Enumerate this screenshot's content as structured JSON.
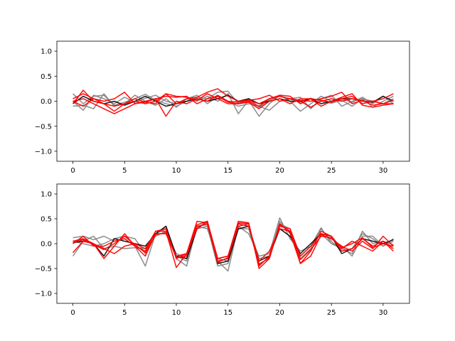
{
  "chart_data": [
    {
      "type": "line",
      "title": "",
      "xlabel": "",
      "ylabel": "",
      "xlim": [
        -1.55,
        32.55
      ],
      "ylim": [
        -1.2,
        1.2
      ],
      "xticks": [
        0,
        5,
        10,
        15,
        20,
        25,
        30
      ],
      "xtick_labels": [
        "0",
        "5",
        "10",
        "15",
        "20",
        "25",
        "30"
      ],
      "yticks": [
        -1.0,
        -0.5,
        0.0,
        0.5,
        1.0
      ],
      "ytick_labels": [
        "−1.0",
        "−0.5",
        "0.0",
        "0.5",
        "1.0"
      ],
      "grid": false,
      "x": [
        0,
        1,
        2,
        3,
        4,
        5,
        6,
        7,
        8,
        9,
        10,
        11,
        12,
        13,
        14,
        15,
        16,
        17,
        18,
        19,
        20,
        21,
        22,
        23,
        24,
        25,
        26,
        27,
        28,
        29,
        30,
        31
      ],
      "series": [
        {
          "color": "#808080",
          "values": [
            0.15,
            -0.05,
            0.1,
            0.12,
            -0.08,
            -0.02,
            0.05,
            0.14,
            0.02,
            -0.05,
            -0.1,
            0.0,
            0.08,
            0.05,
            0.18,
            0.2,
            -0.05,
            0.05,
            -0.12,
            0.02,
            0.1,
            0.04,
            -0.02,
            0.06,
            0.0,
            -0.04,
            0.02,
            -0.1,
            0.05,
            0.0,
            -0.05,
            0.05
          ]
        },
        {
          "color": "#808080",
          "values": [
            0.0,
            -0.18,
            0.12,
            0.05,
            -0.05,
            0.08,
            -0.02,
            0.06,
            0.12,
            0.0,
            -0.05,
            0.05,
            0.0,
            0.1,
            0.0,
            0.15,
            -0.25,
            0.02,
            -0.3,
            -0.05,
            0.12,
            0.0,
            -0.2,
            -0.05,
            0.1,
            0.0,
            0.05,
            -0.02,
            0.08,
            -0.05,
            0.1,
            -0.05
          ]
        },
        {
          "color": "#808080",
          "values": [
            -0.1,
            -0.08,
            -0.15,
            0.15,
            -0.1,
            -0.05,
            0.12,
            0.0,
            -0.08,
            0.05,
            -0.12,
            0.05,
            0.12,
            -0.05,
            0.1,
            0.0,
            -0.1,
            -0.05,
            -0.1,
            -0.18,
            0.0,
            0.05,
            0.08,
            -0.15,
            0.05,
            0.12,
            -0.1,
            0.0,
            0.05,
            -0.12,
            0.0,
            0.1
          ]
        },
        {
          "color": "#000000",
          "values": [
            -0.05,
            0.1,
            0.0,
            -0.05,
            0.0,
            -0.08,
            0.0,
            0.1,
            0.0,
            -0.1,
            -0.05,
            0.0,
            0.05,
            0.0,
            0.05,
            0.12,
            0.0,
            0.05,
            -0.05,
            0.0,
            0.05,
            0.0,
            0.0,
            0.05,
            -0.05,
            0.0,
            0.05,
            0.05,
            0.0,
            -0.02,
            0.1,
            0.0
          ]
        },
        {
          "color": "#ff0000",
          "values": [
            -0.05,
            0.22,
            0.0,
            -0.05,
            -0.2,
            -0.05,
            0.05,
            -0.02,
            -0.05,
            0.15,
            -0.05,
            0.05,
            0.08,
            0.18,
            0.25,
            0.1,
            0.0,
            0.02,
            -0.05,
            0.05,
            0.1,
            0.05,
            0.02,
            0.0,
            0.05,
            0.1,
            0.18,
            -0.05,
            0.02,
            -0.08,
            -0.05,
            0.02
          ]
        },
        {
          "color": "#ff0000",
          "values": [
            0.05,
            0.15,
            0.05,
            0.0,
            0.05,
            0.18,
            -0.05,
            -0.02,
            0.05,
            -0.3,
            0.0,
            -0.05,
            0.05,
            0.0,
            0.12,
            0.0,
            -0.02,
            0.02,
            0.05,
            0.12,
            0.0,
            0.05,
            0.0,
            -0.12,
            0.0,
            0.05,
            0.0,
            0.05,
            0.0,
            0.0,
            0.05,
            0.15
          ]
        },
        {
          "color": "#ff0000",
          "values": [
            0.0,
            0.05,
            -0.05,
            -0.15,
            -0.25,
            -0.15,
            -0.05,
            0.0,
            0.05,
            0.1,
            0.08,
            0.1,
            -0.05,
            0.05,
            0.1,
            -0.02,
            -0.05,
            0.0,
            -0.1,
            0.05,
            0.12,
            0.1,
            -0.05,
            0.05,
            0.02,
            -0.02,
            0.05,
            0.1,
            -0.05,
            0.0,
            -0.05,
            -0.05
          ]
        },
        {
          "color": "#ff0000",
          "values": [
            0.0,
            -0.1,
            0.05,
            -0.05,
            -0.1,
            -0.05,
            0.0,
            -0.05,
            0.0,
            0.15,
            0.1,
            0.08,
            0.02,
            0.15,
            0.05,
            -0.05,
            -0.05,
            -0.02,
            -0.15,
            0.0,
            0.05,
            -0.05,
            0.05,
            0.05,
            -0.1,
            0.0,
            0.08,
            0.15,
            -0.08,
            -0.12,
            -0.08,
            -0.05
          ]
        }
      ]
    },
    {
      "type": "line",
      "title": "",
      "xlabel": "",
      "ylabel": "",
      "xlim": [
        -1.55,
        32.55
      ],
      "ylim": [
        -1.2,
        1.2
      ],
      "xticks": [
        0,
        5,
        10,
        15,
        20,
        25,
        30
      ],
      "xtick_labels": [
        "0",
        "5",
        "10",
        "15",
        "20",
        "25",
        "30"
      ],
      "yticks": [
        -1.0,
        -0.5,
        0.0,
        0.5,
        1.0
      ],
      "ytick_labels": [
        "−1.0",
        "−0.5",
        "0.0",
        "0.5",
        "1.0"
      ],
      "grid": false,
      "x": [
        0,
        1,
        2,
        3,
        4,
        5,
        6,
        7,
        8,
        9,
        10,
        11,
        12,
        13,
        14,
        15,
        16,
        17,
        18,
        19,
        20,
        21,
        22,
        23,
        24,
        25,
        26,
        27,
        28,
        29,
        30,
        31
      ],
      "series": [
        {
          "color": "#808080",
          "values": [
            0.12,
            0.15,
            0.08,
            0.15,
            0.05,
            0.1,
            -0.05,
            -0.45,
            0.2,
            0.3,
            -0.3,
            -0.45,
            0.35,
            0.38,
            -0.35,
            -0.55,
            0.35,
            0.2,
            -0.25,
            -0.2,
            0.52,
            0.1,
            -0.15,
            -0.05,
            0.32,
            0.0,
            -0.1,
            -0.2,
            0.25,
            0.0,
            0.05,
            -0.02
          ]
        },
        {
          "color": "#808080",
          "values": [
            -0.25,
            0.05,
            0.15,
            -0.1,
            -0.05,
            -0.1,
            -0.08,
            -0.1,
            0.15,
            0.25,
            -0.2,
            -0.3,
            0.3,
            0.35,
            -0.45,
            -0.4,
            0.3,
            0.3,
            -0.4,
            -0.3,
            0.45,
            0.2,
            -0.3,
            -0.1,
            0.3,
            0.05,
            -0.15,
            -0.1,
            0.2,
            0.1,
            -0.05,
            0.1
          ]
        },
        {
          "color": "#808080",
          "values": [
            0.05,
            0.0,
            -0.05,
            0.0,
            0.1,
            0.15,
            0.1,
            -0.2,
            0.2,
            0.35,
            -0.25,
            -0.35,
            0.35,
            0.3,
            -0.3,
            -0.35,
            0.4,
            0.35,
            -0.3,
            -0.25,
            0.4,
            0.3,
            -0.25,
            -0.05,
            0.2,
            0.0,
            -0.05,
            -0.25,
            0.15,
            0.15,
            -0.05,
            0.05
          ]
        },
        {
          "color": "#000000",
          "values": [
            0.02,
            0.05,
            0.0,
            -0.25,
            0.1,
            0.05,
            0.0,
            -0.05,
            0.2,
            0.35,
            -0.25,
            -0.3,
            0.3,
            0.45,
            -0.4,
            -0.35,
            0.3,
            0.35,
            -0.35,
            -0.25,
            0.3,
            0.15,
            -0.2,
            0.0,
            0.2,
            0.15,
            -0.2,
            -0.1,
            0.1,
            0.05,
            0.0,
            0.08
          ]
        },
        {
          "color": "#ff0000",
          "values": [
            0.0,
            0.15,
            -0.05,
            -0.05,
            0.05,
            0.1,
            -0.05,
            -0.15,
            0.25,
            0.25,
            -0.48,
            -0.2,
            0.38,
            0.45,
            -0.3,
            -0.25,
            0.45,
            0.42,
            -0.5,
            -0.3,
            0.4,
            0.22,
            -0.4,
            -0.25,
            0.18,
            0.1,
            -0.05,
            -0.15,
            0.05,
            -0.1,
            0.15,
            -0.05
          ]
        },
        {
          "color": "#ff0000",
          "values": [
            0.05,
            0.1,
            0.0,
            -0.3,
            -0.05,
            0.2,
            -0.05,
            -0.25,
            0.2,
            0.2,
            -0.25,
            -0.2,
            0.45,
            0.42,
            -0.3,
            -0.25,
            0.42,
            0.4,
            -0.45,
            -0.25,
            0.35,
            0.3,
            -0.25,
            -0.05,
            0.2,
            0.15,
            -0.1,
            0.05,
            -0.05,
            -0.15,
            0.05,
            -0.1
          ]
        },
        {
          "color": "#ff0000",
          "values": [
            -0.18,
            0.05,
            0.0,
            -0.1,
            -0.2,
            -0.05,
            0.0,
            -0.1,
            0.25,
            0.3,
            -0.3,
            -0.2,
            0.3,
            0.45,
            -0.35,
            -0.3,
            0.4,
            0.35,
            -0.35,
            -0.15,
            0.3,
            0.25,
            -0.4,
            -0.15,
            0.25,
            0.15,
            -0.15,
            -0.1,
            0.1,
            -0.05,
            0.05,
            -0.15
          ]
        },
        {
          "color": "#ff0000",
          "values": [
            0.02,
            0.08,
            -0.02,
            -0.12,
            0.0,
            0.15,
            -0.02,
            -0.18,
            0.18,
            0.22,
            -0.28,
            -0.25,
            0.35,
            0.4,
            -0.38,
            -0.28,
            0.35,
            0.4,
            -0.42,
            -0.28,
            0.38,
            0.25,
            -0.32,
            -0.12,
            0.15,
            0.12,
            -0.08,
            0.0,
            0.12,
            -0.08,
            0.0,
            -0.05
          ]
        }
      ]
    }
  ]
}
